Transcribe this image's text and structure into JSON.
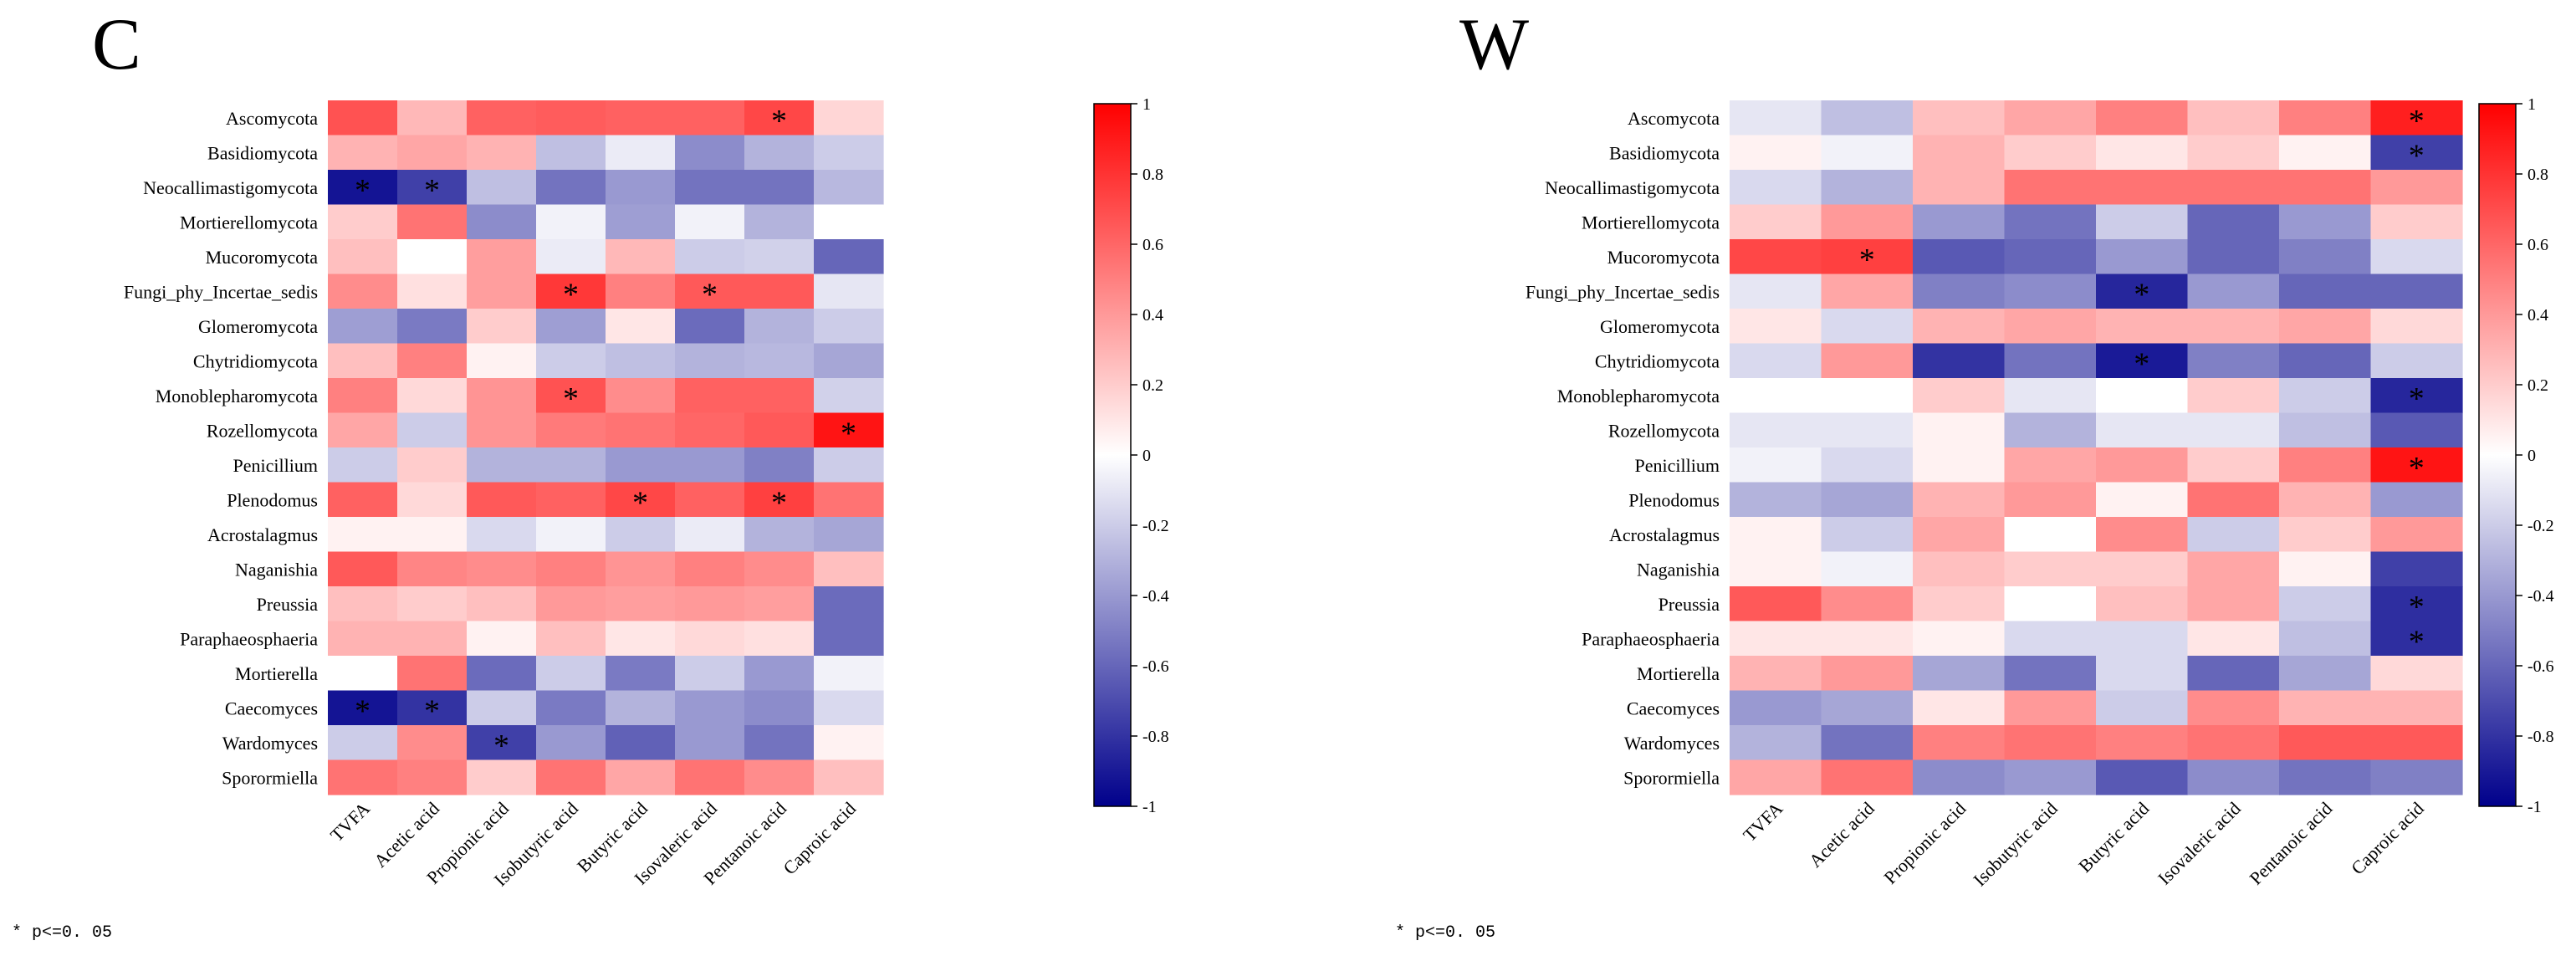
{
  "chart_data": [
    {
      "type": "heatmap",
      "title": "C",
      "rows": [
        "Ascomycota",
        "Basidiomycota",
        "Neocallimastigomycota",
        "Mortierellomycota",
        "Mucoromycota",
        "Fungi_phy_Incertae_sedis",
        "Glomeromycota",
        "Chytridiomycota",
        "Monoblepharomycota",
        "Rozellomycota",
        "Penicillium",
        "Plenodomus",
        "Acrostalagmus",
        "Naganishia",
        "Preussia",
        "Paraphaeosphaeria",
        "Mortierella",
        "Caecomyces",
        "Wardomyces",
        "Sporormiella"
      ],
      "columns": [
        "TVFA",
        "Acetic acid",
        "Propionic acid",
        "Isobutyric acid",
        "Butyric acid",
        "Isovaleric acid",
        "Pentanoic acid",
        "Caproic acid"
      ],
      "values": [
        [
          0.68,
          0.28,
          0.62,
          0.64,
          0.62,
          0.62,
          0.72,
          0.16
        ],
        [
          0.3,
          0.35,
          0.3,
          -0.25,
          -0.08,
          -0.45,
          -0.3,
          -0.2
        ],
        [
          -0.92,
          -0.75,
          -0.25,
          -0.55,
          -0.4,
          -0.55,
          -0.55,
          -0.28
        ],
        [
          0.2,
          0.55,
          -0.45,
          -0.05,
          -0.38,
          -0.05,
          -0.3,
          0.0
        ],
        [
          0.25,
          0.0,
          0.38,
          -0.08,
          0.28,
          -0.2,
          -0.18,
          -0.6
        ],
        [
          0.45,
          0.12,
          0.38,
          0.78,
          0.5,
          0.65,
          0.65,
          -0.1
        ],
        [
          -0.38,
          -0.52,
          0.2,
          -0.38,
          0.1,
          -0.58,
          -0.3,
          -0.2
        ],
        [
          0.25,
          0.5,
          0.05,
          -0.2,
          -0.25,
          -0.3,
          -0.28,
          -0.35
        ],
        [
          0.5,
          0.15,
          0.42,
          0.68,
          0.45,
          0.62,
          0.62,
          -0.18
        ],
        [
          0.35,
          -0.2,
          0.42,
          0.52,
          0.55,
          0.6,
          0.65,
          0.92
        ],
        [
          -0.2,
          0.2,
          -0.3,
          -0.3,
          -0.4,
          -0.4,
          -0.5,
          -0.2
        ],
        [
          0.62,
          0.15,
          0.65,
          0.62,
          0.72,
          0.62,
          0.75,
          0.55
        ],
        [
          0.05,
          0.05,
          -0.15,
          -0.05,
          -0.2,
          -0.08,
          -0.3,
          -0.35
        ],
        [
          0.65,
          0.48,
          0.45,
          0.5,
          0.42,
          0.5,
          0.45,
          0.25
        ],
        [
          0.25,
          0.2,
          0.25,
          0.4,
          0.38,
          0.4,
          0.38,
          -0.58
        ],
        [
          0.3,
          0.3,
          0.05,
          0.25,
          0.1,
          0.15,
          0.12,
          -0.58
        ],
        [
          0.0,
          0.55,
          -0.58,
          -0.2,
          -0.52,
          -0.2,
          -0.4,
          -0.05
        ],
        [
          -0.92,
          -0.8,
          -0.2,
          -0.52,
          -0.3,
          -0.4,
          -0.45,
          -0.15
        ],
        [
          -0.2,
          0.45,
          -0.75,
          -0.4,
          -0.62,
          -0.4,
          -0.55,
          0.05
        ],
        [
          0.55,
          0.5,
          0.2,
          0.55,
          0.35,
          0.55,
          0.45,
          0.25
        ]
      ],
      "significant": [
        [
          0,
          6
        ],
        [
          2,
          0
        ],
        [
          2,
          1
        ],
        [
          5,
          3
        ],
        [
          5,
          5
        ],
        [
          8,
          3
        ],
        [
          9,
          7
        ],
        [
          11,
          4
        ],
        [
          11,
          6
        ],
        [
          17,
          0
        ],
        [
          17,
          1
        ],
        [
          18,
          2
        ]
      ],
      "marker": "*",
      "colorbar": {
        "range": [
          -1,
          1
        ],
        "ticks": [
          "1",
          "0.8",
          "0.6",
          "0.4",
          "0.2",
          "0",
          "-0.2",
          "-0.4",
          "-0.6",
          "-0.8",
          "-1"
        ]
      },
      "colors": {
        "low": "#00008B",
        "mid": "#FFFFFF",
        "high": "#FF0000"
      },
      "footnote": "* p<=0. 05"
    },
    {
      "type": "heatmap",
      "title": "W",
      "rows": [
        "Ascomycota",
        "Basidiomycota",
        "Neocallimastigomycota",
        "Mortierellomycota",
        "Mucoromycota",
        "Fungi_phy_Incertae_sedis",
        "Glomeromycota",
        "Chytridiomycota",
        "Monoblepharomycota",
        "Rozellomycota",
        "Penicillium",
        "Plenodomus",
        "Acrostalagmus",
        "Naganishia",
        "Preussia",
        "Paraphaeosphaeria",
        "Mortierella",
        "Caecomyces",
        "Wardomyces",
        "Sporormiella"
      ],
      "columns": [
        "TVFA",
        "Acetic acid",
        "Propionic acid",
        "Isobutyric acid",
        "Butyric acid",
        "Isovaleric acid",
        "Pentanoic acid",
        "Caproic acid"
      ],
      "values": [
        [
          -0.1,
          -0.25,
          0.25,
          0.35,
          0.5,
          0.25,
          0.5,
          0.88
        ],
        [
          0.05,
          -0.05,
          0.3,
          0.2,
          0.1,
          0.2,
          0.05,
          -0.75
        ],
        [
          -0.15,
          -0.3,
          0.3,
          0.55,
          0.55,
          0.55,
          0.55,
          0.4
        ],
        [
          0.2,
          0.4,
          -0.4,
          -0.55,
          -0.2,
          -0.6,
          -0.4,
          0.2
        ],
        [
          0.72,
          0.75,
          -0.65,
          -0.6,
          -0.4,
          -0.6,
          -0.5,
          -0.15
        ],
        [
          -0.1,
          0.35,
          -0.5,
          -0.45,
          -0.85,
          -0.4,
          -0.6,
          -0.6
        ],
        [
          0.1,
          -0.15,
          0.3,
          0.35,
          0.3,
          0.3,
          0.35,
          0.15
        ],
        [
          -0.15,
          0.4,
          -0.8,
          -0.55,
          -0.9,
          -0.5,
          -0.6,
          -0.2
        ],
        [
          0.0,
          0.0,
          0.2,
          -0.1,
          0.0,
          0.2,
          -0.2,
          -0.85
        ],
        [
          -0.1,
          -0.1,
          0.05,
          -0.3,
          -0.1,
          -0.1,
          -0.25,
          -0.65
        ],
        [
          -0.05,
          -0.15,
          0.05,
          0.35,
          0.4,
          0.2,
          0.5,
          0.92
        ],
        [
          -0.3,
          -0.35,
          0.3,
          0.4,
          0.05,
          0.55,
          0.3,
          -0.4
        ],
        [
          0.05,
          -0.2,
          0.35,
          0.0,
          0.45,
          -0.2,
          0.2,
          0.4
        ],
        [
          0.05,
          -0.05,
          0.25,
          0.2,
          0.2,
          0.35,
          0.05,
          -0.75
        ],
        [
          0.65,
          0.45,
          0.2,
          0.0,
          0.25,
          0.35,
          -0.2,
          -0.82
        ],
        [
          0.1,
          0.1,
          0.05,
          -0.15,
          -0.15,
          0.1,
          -0.25,
          -0.82
        ],
        [
          0.3,
          0.4,
          -0.35,
          -0.55,
          -0.15,
          -0.6,
          -0.35,
          0.15
        ],
        [
          -0.4,
          -0.35,
          0.1,
          0.4,
          -0.2,
          0.45,
          0.3,
          0.3
        ],
        [
          -0.3,
          -0.55,
          0.5,
          0.55,
          0.5,
          0.55,
          0.65,
          0.65
        ],
        [
          0.35,
          0.55,
          -0.45,
          -0.4,
          -0.65,
          -0.45,
          -0.55,
          -0.5
        ]
      ],
      "significant": [
        [
          0,
          7
        ],
        [
          1,
          7
        ],
        [
          4,
          1
        ],
        [
          5,
          4
        ],
        [
          7,
          4
        ],
        [
          8,
          7
        ],
        [
          10,
          7
        ],
        [
          14,
          7
        ],
        [
          15,
          7
        ]
      ],
      "marker": "*",
      "colorbar": {
        "range": [
          -1,
          1
        ],
        "ticks": [
          "1",
          "0.8",
          "0.6",
          "0.4",
          "0.2",
          "0",
          "-0.2",
          "-0.4",
          "-0.6",
          "-0.8",
          "-1"
        ]
      },
      "colors": {
        "low": "#00008B",
        "mid": "#FFFFFF",
        "high": "#FF0000"
      },
      "footnote": "* p<=0. 05"
    }
  ]
}
